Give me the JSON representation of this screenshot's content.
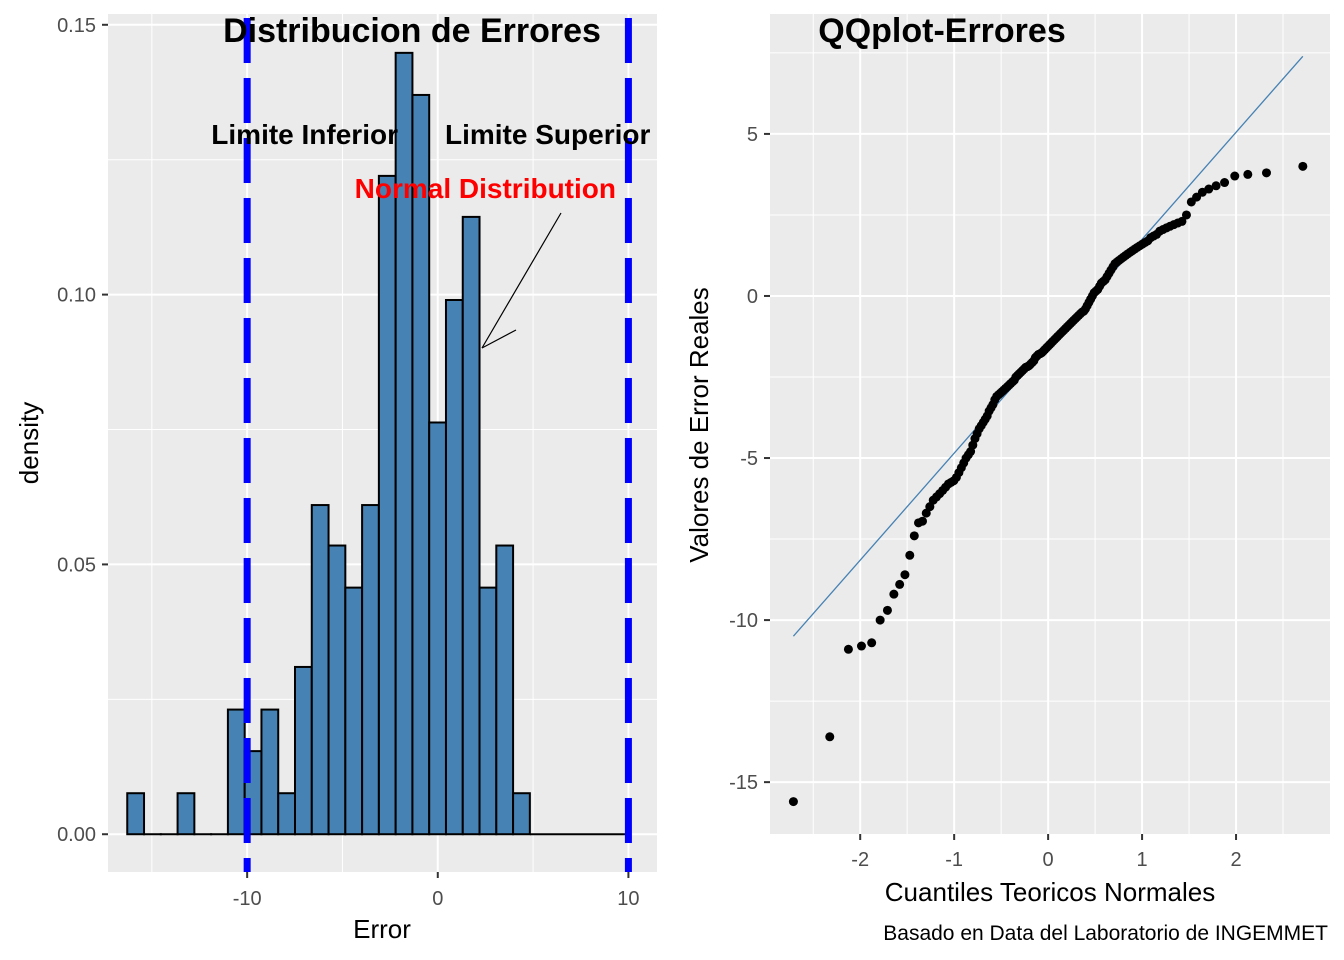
{
  "chart_data": [
    {
      "type": "bar",
      "title": "Distribucion de Errores",
      "xlabel": "Error",
      "ylabel": "density",
      "xlim": [
        -17.3,
        11.5
      ],
      "ylim": [
        -0.007,
        0.152
      ],
      "xticks": [
        -10,
        0,
        10
      ],
      "xtick_labels": [
        "-10",
        "0",
        "10"
      ],
      "yticks": [
        0,
        0.05,
        0.1,
        0.15
      ],
      "ytick_labels": [
        "0.00",
        "0.05",
        "0.10",
        "0.15"
      ],
      "grid": true,
      "bin_start": -16.29,
      "bin_width": 0.88,
      "baseline_end": 10,
      "values": [
        0.0076,
        0,
        0,
        0.0076,
        0,
        0,
        0.0231,
        0.0154,
        0.0231,
        0.0076,
        0.031,
        0.061,
        0.0535,
        0.0457,
        0.061,
        0.122,
        0.1448,
        0.137,
        0.0763,
        0.099,
        0.1144,
        0.0457,
        0.0535,
        0.0076
      ],
      "fill": "#4682B4",
      "vlines": [
        -10,
        10
      ],
      "vline_color": "#0000FF",
      "annotations": {
        "lower": "Limite Inferior",
        "upper": "Limite Superior",
        "normal": "Normal Distribution",
        "normal_color": "#FF0000"
      }
    },
    {
      "type": "scatter",
      "title": "QQplot-Errores",
      "xlabel": "Cuantiles Teoricos Normales",
      "ylabel": "Valores de Error Reales",
      "caption": "Basado en Data del Laboratorio de INGEMMET",
      "xlim": [
        -2.96,
        3.0
      ],
      "ylim": [
        -16.6,
        8.7
      ],
      "xticks": [
        -2,
        -1,
        0,
        1,
        2
      ],
      "xtick_labels": [
        "-2",
        "-1",
        "0",
        "1",
        "2"
      ],
      "yticks": [
        5,
        0,
        -5,
        -10,
        -15
      ],
      "ytick_labels": [
        "5",
        "0",
        "-5",
        "-10",
        "-15"
      ],
      "grid": true,
      "line_color": "#4682B4",
      "qq_line": {
        "intercept": -1.55,
        "slope": 3.3
      },
      "sample_sorted": [
        -15.6,
        -13.6,
        -10.9,
        -10.8,
        -10.7,
        -10.0,
        -9.7,
        -9.2,
        -8.9,
        -8.6,
        -8.0,
        -7.4,
        -7.0,
        -6.95,
        -6.7,
        -6.5,
        -6.3,
        -6.2,
        -6.1,
        -6.0,
        -5.9,
        -5.8,
        -5.75,
        -5.7,
        -5.6,
        -5.45,
        -5.3,
        -5.15,
        -5.0,
        -4.9,
        -4.8,
        -4.6,
        -4.4,
        -4.25,
        -4.1,
        -4.0,
        -3.9,
        -3.8,
        -3.7,
        -3.55,
        -3.45,
        -3.35,
        -3.2,
        -3.1,
        -3.05,
        -3.0,
        -2.95,
        -2.9,
        -2.85,
        -2.8,
        -2.75,
        -2.7,
        -2.65,
        -2.6,
        -2.5,
        -2.45,
        -2.4,
        -2.35,
        -2.3,
        -2.25,
        -2.2,
        -2.18,
        -2.15,
        -2.1,
        -2.05,
        -2.0,
        -1.9,
        -1.85,
        -1.8,
        -1.78,
        -1.75,
        -1.7,
        -1.65,
        -1.6,
        -1.55,
        -1.5,
        -1.45,
        -1.4,
        -1.35,
        -1.3,
        -1.25,
        -1.2,
        -1.15,
        -1.1,
        -1.05,
        -1.0,
        -0.95,
        -0.9,
        -0.85,
        -0.8,
        -0.75,
        -0.7,
        -0.65,
        -0.6,
        -0.55,
        -0.5,
        -0.47,
        -0.4,
        -0.3,
        -0.2,
        -0.1,
        0.0,
        0.1,
        0.15,
        0.2,
        0.3,
        0.4,
        0.45,
        0.5,
        0.6,
        0.7,
        0.8,
        0.9,
        1.0,
        1.05,
        1.1,
        1.15,
        1.2,
        1.25,
        1.3,
        1.35,
        1.4,
        1.45,
        1.5,
        1.55,
        1.6,
        1.65,
        1.7,
        1.8,
        1.85,
        1.9,
        2.0,
        2.05,
        2.1,
        2.15,
        2.2,
        2.25,
        2.3,
        2.5,
        2.9,
        3.05,
        3.2,
        3.3,
        3.4,
        3.5,
        3.7,
        3.75,
        3.8,
        4.0
      ]
    }
  ]
}
